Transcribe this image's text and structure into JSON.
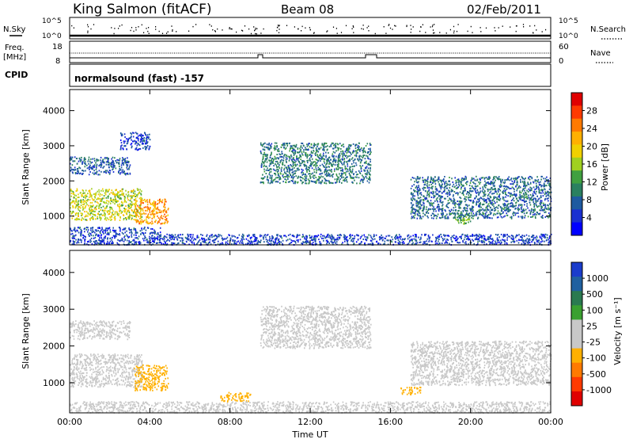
{
  "header": {
    "station": "King Salmon (fitACF)",
    "beam": "Beam 08",
    "date": "02/Feb/2011"
  },
  "top_panels": {
    "nsky_label": "N.Sky",
    "nsearch_label": "N.Search",
    "freq_label_1": "Freq.",
    "freq_label_2": "[MHz]",
    "nave_label": "Nave",
    "cpid_label": "CPID",
    "cpid_value": "normalsound (fast) -157",
    "noise_ticks_left": [
      "10^5",
      "10^0"
    ],
    "noise_ticks_right": [
      "10^5",
      "10^0"
    ],
    "freq_ticks": [
      "18",
      "8"
    ],
    "nave_ticks": [
      "60",
      "0"
    ]
  },
  "colorbars": {
    "power": {
      "label": "Power [dB]",
      "ticks": [
        "28",
        "24",
        "20",
        "16",
        "12",
        "8",
        "4"
      ],
      "colors": [
        "#e00000",
        "#ff3a00",
        "#ff7a00",
        "#ffb000",
        "#f0d000",
        "#a0d020",
        "#40a040",
        "#2a8060",
        "#1e5aa0",
        "#1a30d0",
        "#0000ff"
      ]
    },
    "velocity": {
      "label": "Velocity [m s⁻¹]",
      "ticks": [
        "1000",
        "500",
        "100",
        "25",
        "-25",
        "-100",
        "-500",
        "-1000"
      ],
      "colors": [
        "#1a3ccc",
        "#2060a0",
        "#2a7a50",
        "#3aa030",
        "#c8c8c8",
        "#c8c8c8",
        "#ffb000",
        "#ff7a00",
        "#ff3a00",
        "#e00000"
      ]
    }
  },
  "axes": {
    "ylabel": "Slant Range [km]",
    "xlabel": "Time UT",
    "y_ticks": [
      "4000",
      "3000",
      "2000",
      "1000"
    ],
    "x_ticks": [
      "00:00",
      "04:00",
      "08:00",
      "12:00",
      "16:00",
      "20:00",
      "00:00"
    ]
  },
  "chart_data": [
    {
      "type": "heatmap",
      "title": "Power",
      "xlabel": "",
      "ylabel": "Slant Range [km]",
      "xlim": [
        "00:00",
        "24:00"
      ],
      "ylim": [
        180,
        4600
      ],
      "color_scale": {
        "min": 0,
        "max": 30,
        "units": "dB"
      },
      "regions": [
        {
          "t": [
            0.0,
            3.0
          ],
          "r": [
            2200,
            2700
          ],
          "level": 6
        },
        {
          "t": [
            2.5,
            4.0
          ],
          "r": [
            2900,
            3400
          ],
          "level": 4
        },
        {
          "t": [
            0.0,
            3.6
          ],
          "r": [
            900,
            1800
          ],
          "level": 16
        },
        {
          "t": [
            3.2,
            4.9
          ],
          "r": [
            800,
            1500
          ],
          "level": 22
        },
        {
          "t": [
            0.0,
            4.5
          ],
          "r": [
            500,
            700
          ],
          "level": 4
        },
        {
          "t": [
            9.5,
            15.0
          ],
          "r": [
            1950,
            3100
          ],
          "level": 8
        },
        {
          "t": [
            17.0,
            24.0
          ],
          "r": [
            950,
            2150
          ],
          "level": 7
        },
        {
          "t": [
            19.2,
            20.0
          ],
          "r": [
            800,
            1100
          ],
          "level": 12
        },
        {
          "t": [
            0.0,
            24.0
          ],
          "r": [
            200,
            500
          ],
          "level": 4
        }
      ]
    },
    {
      "type": "heatmap",
      "title": "Velocity",
      "xlabel": "Time UT",
      "ylabel": "Slant Range [km]",
      "xlim": [
        "00:00",
        "24:00"
      ],
      "ylim": [
        180,
        4600
      ],
      "color_scale": {
        "min": -1000,
        "max": 1000,
        "units": "m s-1"
      },
      "regions": [
        {
          "t": [
            0.0,
            3.0
          ],
          "r": [
            2200,
            2700
          ],
          "level": 0
        },
        {
          "t": [
            0.0,
            3.6
          ],
          "r": [
            900,
            1800
          ],
          "level": 0
        },
        {
          "t": [
            3.2,
            4.9
          ],
          "r": [
            800,
            1500
          ],
          "level": -300
        },
        {
          "t": [
            9.5,
            15.0
          ],
          "r": [
            1950,
            3100
          ],
          "level": 0
        },
        {
          "t": [
            17.0,
            24.0
          ],
          "r": [
            950,
            2150
          ],
          "level": 0
        },
        {
          "t": [
            7.5,
            9.0
          ],
          "r": [
            500,
            750
          ],
          "level": -200
        },
        {
          "t": [
            16.5,
            17.5
          ],
          "r": [
            700,
            900
          ],
          "level": -300
        },
        {
          "t": [
            0.0,
            24.0
          ],
          "r": [
            200,
            500
          ],
          "level": -50
        }
      ]
    }
  ]
}
